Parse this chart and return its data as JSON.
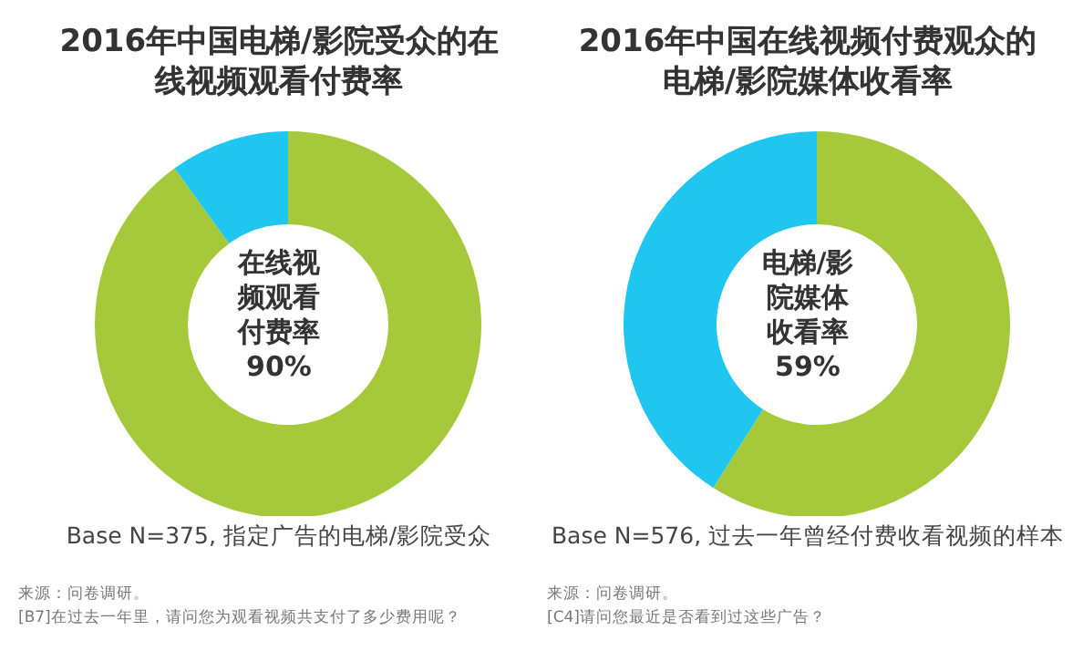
{
  "chart_data": [
    {
      "type": "donut",
      "title": "2016年中国电梯/影院受众的在线视频观看付费率",
      "categories": [
        null,
        null
      ],
      "values": [
        90,
        10
      ],
      "colors": [
        "#a6c93c",
        "#1fc6ef"
      ],
      "value_labels": [
        "90%",
        null
      ],
      "annotations": [
        "在线视频观看付费率",
        "Base N=375, 指定广告的电梯/影院受众",
        "来源：问卷调研。",
        "[B7]在过去一年里，请问您为观看视频共支付了多少费用呢？"
      ]
    },
    {
      "type": "donut",
      "title": "2016年中国在线视频付费观众的电梯/影院媒体收看率",
      "categories": [
        null,
        null
      ],
      "values": [
        59,
        41
      ],
      "colors": [
        "#a6c93c",
        "#1fc6ef"
      ],
      "value_labels": [
        "59%",
        null
      ],
      "annotations": [
        "电梯/影院媒体收看率",
        "Base N=576, 过去一年曾经付费收看视频的样本",
        "来源：问卷调研。",
        "[C4]请问您最近是否看到过这些广告？"
      ]
    }
  ]
}
